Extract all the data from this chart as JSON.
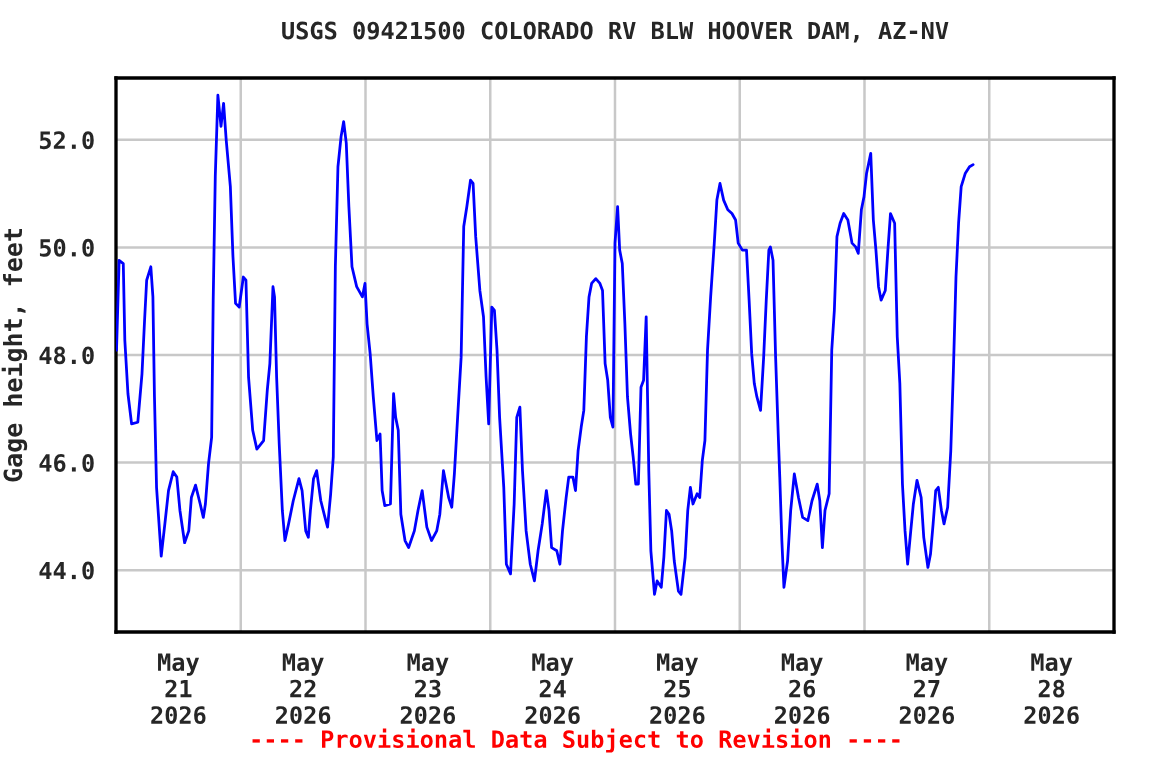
{
  "chart_data": {
    "type": "line",
    "title": "USGS 09421500 COLORADO RV BLW HOOVER DAM, AZ-NV",
    "ylabel": "Gage height, feet",
    "annotations": [
      "---- Provisional Data Subject to Revision ----"
    ],
    "series": [
      {
        "color": "#0000ff",
        "x": [
          "2026-05-21T00:06",
          "2026-05-21T00:36",
          "2026-05-21T01:24",
          "2026-05-21T01:42",
          "2026-05-21T02:18",
          "2026-05-21T03:00",
          "2026-05-21T04:12",
          "2026-05-21T05:00",
          "2026-05-21T05:30",
          "2026-05-21T05:54",
          "2026-05-21T06:42",
          "2026-05-21T07:06",
          "2026-05-21T07:24",
          "2026-05-21T07:48",
          "2026-05-21T08:42",
          "2026-05-21T09:24",
          "2026-05-21T10:06",
          "2026-05-21T11:00",
          "2026-05-21T11:42",
          "2026-05-21T12:18",
          "2026-05-21T13:12",
          "2026-05-21T14:00",
          "2026-05-21T14:30",
          "2026-05-21T15:18",
          "2026-05-21T16:12",
          "2026-05-21T16:48",
          "2026-05-21T17:12",
          "2026-05-21T17:48",
          "2026-05-21T18:24",
          "2026-05-21T18:42",
          "2026-05-21T19:06",
          "2026-05-21T19:36",
          "2026-05-21T20:12",
          "2026-05-21T20:42",
          "2026-05-21T21:12",
          "2026-05-21T22:00",
          "2026-05-21T22:30",
          "2026-05-21T23:00",
          "2026-05-21T23:42",
          "2026-05-22T00:30",
          "2026-05-22T01:00",
          "2026-05-22T01:30",
          "2026-05-22T02:18",
          "2026-05-22T03:06",
          "2026-05-22T04:24",
          "2026-05-22T05:06",
          "2026-05-22T05:36",
          "2026-05-22T06:12",
          "2026-05-22T06:30",
          "2026-05-22T06:54",
          "2026-05-22T07:24",
          "2026-05-22T08:00",
          "2026-05-22T08:30",
          "2026-05-22T09:12",
          "2026-05-22T10:06",
          "2026-05-22T11:12",
          "2026-05-22T11:48",
          "2026-05-22T12:30",
          "2026-05-22T13:00",
          "2026-05-22T13:24",
          "2026-05-22T14:00",
          "2026-05-22T14:36",
          "2026-05-22T15:24",
          "2026-05-22T16:12",
          "2026-05-22T16:42",
          "2026-05-22T17:18",
          "2026-05-22T17:48",
          "2026-05-22T18:12",
          "2026-05-22T18:42",
          "2026-05-22T19:18",
          "2026-05-22T19:48",
          "2026-05-22T20:18",
          "2026-05-22T20:48",
          "2026-05-22T21:24",
          "2026-05-22T22:18",
          "2026-05-22T23:24",
          "2026-05-22T23:54",
          "2026-05-23T00:18",
          "2026-05-23T00:54",
          "2026-05-23T01:30",
          "2026-05-23T02:12",
          "2026-05-23T02:48",
          "2026-05-23T03:12",
          "2026-05-23T03:42",
          "2026-05-23T04:48",
          "2026-05-23T05:24",
          "2026-05-23T05:48",
          "2026-05-23T06:18",
          "2026-05-23T06:48",
          "2026-05-23T07:36",
          "2026-05-23T08:18",
          "2026-05-23T09:24",
          "2026-05-23T10:06",
          "2026-05-23T10:54",
          "2026-05-23T11:48",
          "2026-05-23T12:42",
          "2026-05-23T13:42",
          "2026-05-23T14:18",
          "2026-05-23T15:00",
          "2026-05-23T16:00",
          "2026-05-23T16:36",
          "2026-05-23T17:06",
          "2026-05-23T17:48",
          "2026-05-23T18:24",
          "2026-05-23T18:54",
          "2026-05-23T19:30",
          "2026-05-23T20:12",
          "2026-05-23T20:42",
          "2026-05-23T21:12",
          "2026-05-23T22:00",
          "2026-05-23T22:42",
          "2026-05-23T23:12",
          "2026-05-23T23:42",
          "2026-05-24T00:18",
          "2026-05-24T00:48",
          "2026-05-24T01:18",
          "2026-05-24T01:48",
          "2026-05-24T02:36",
          "2026-05-24T03:06",
          "2026-05-24T03:54",
          "2026-05-24T04:36",
          "2026-05-24T05:06",
          "2026-05-24T05:42",
          "2026-05-24T06:12",
          "2026-05-24T06:54",
          "2026-05-24T07:42",
          "2026-05-24T08:30",
          "2026-05-24T09:12",
          "2026-05-24T10:00",
          "2026-05-24T10:48",
          "2026-05-24T11:18",
          "2026-05-24T11:48",
          "2026-05-24T12:48",
          "2026-05-24T13:24",
          "2026-05-24T13:54",
          "2026-05-24T14:36",
          "2026-05-24T15:06",
          "2026-05-24T15:54",
          "2026-05-24T16:24",
          "2026-05-24T16:54",
          "2026-05-24T17:30",
          "2026-05-24T18:00",
          "2026-05-24T18:30",
          "2026-05-24T19:00",
          "2026-05-24T19:30",
          "2026-05-24T20:18",
          "2026-05-24T21:06",
          "2026-05-24T21:36",
          "2026-05-24T22:06",
          "2026-05-24T22:36",
          "2026-05-24T23:06",
          "2026-05-24T23:36",
          "2026-05-25T00:00",
          "2026-05-25T00:30",
          "2026-05-25T00:54",
          "2026-05-25T01:24",
          "2026-05-25T01:54",
          "2026-05-25T02:24",
          "2026-05-25T03:00",
          "2026-05-25T03:30",
          "2026-05-25T04:00",
          "2026-05-25T04:30",
          "2026-05-25T05:00",
          "2026-05-25T05:30",
          "2026-05-25T06:00",
          "2026-05-25T06:30",
          "2026-05-25T06:54",
          "2026-05-25T07:36",
          "2026-05-25T08:06",
          "2026-05-25T08:54",
          "2026-05-25T09:24",
          "2026-05-25T09:54",
          "2026-05-25T10:24",
          "2026-05-25T10:54",
          "2026-05-25T11:24",
          "2026-05-25T12:12",
          "2026-05-25T12:42",
          "2026-05-25T13:30",
          "2026-05-25T14:00",
          "2026-05-25T14:30",
          "2026-05-25T15:00",
          "2026-05-25T15:48",
          "2026-05-25T16:18",
          "2026-05-25T16:48",
          "2026-05-25T17:18",
          "2026-05-25T17:48",
          "2026-05-25T18:24",
          "2026-05-25T19:06",
          "2026-05-25T19:36",
          "2026-05-25T20:12",
          "2026-05-25T20:54",
          "2026-05-25T21:42",
          "2026-05-25T22:30",
          "2026-05-25T23:12",
          "2026-05-25T23:42",
          "2026-05-26T00:30",
          "2026-05-26T01:18",
          "2026-05-26T01:48",
          "2026-05-26T02:18",
          "2026-05-26T02:48",
          "2026-05-26T03:18",
          "2026-05-26T04:00",
          "2026-05-26T04:36",
          "2026-05-26T05:06",
          "2026-05-26T05:36",
          "2026-05-26T05:54",
          "2026-05-26T06:24",
          "2026-05-26T06:54",
          "2026-05-26T07:24",
          "2026-05-26T07:42",
          "2026-05-26T08:06",
          "2026-05-26T08:30",
          "2026-05-26T09:12",
          "2026-05-26T09:48",
          "2026-05-26T10:30",
          "2026-05-26T11:18",
          "2026-05-26T12:06",
          "2026-05-26T13:06",
          "2026-05-26T13:54",
          "2026-05-26T14:54",
          "2026-05-26T15:24",
          "2026-05-26T15:54",
          "2026-05-26T16:24",
          "2026-05-26T17:12",
          "2026-05-26T17:42",
          "2026-05-26T18:12",
          "2026-05-26T18:42",
          "2026-05-26T19:18",
          "2026-05-26T20:00",
          "2026-05-26T20:48",
          "2026-05-26T21:36",
          "2026-05-26T22:18",
          "2026-05-26T22:48",
          "2026-05-26T23:24",
          "2026-05-26T23:54",
          "2026-05-27T00:24",
          "2026-05-27T01:12",
          "2026-05-27T01:42",
          "2026-05-27T02:12",
          "2026-05-27T02:42",
          "2026-05-27T03:12",
          "2026-05-27T04:00",
          "2026-05-27T04:30",
          "2026-05-27T05:00",
          "2026-05-27T05:48",
          "2026-05-27T06:18",
          "2026-05-27T06:48",
          "2026-05-27T07:18",
          "2026-05-27T07:48",
          "2026-05-27T08:18",
          "2026-05-27T08:54",
          "2026-05-27T09:24",
          "2026-05-27T10:06",
          "2026-05-27T10:54",
          "2026-05-27T11:24",
          "2026-05-27T12:12",
          "2026-05-27T12:42",
          "2026-05-27T13:12",
          "2026-05-27T13:42",
          "2026-05-27T14:12",
          "2026-05-27T14:48",
          "2026-05-27T15:18",
          "2026-05-27T16:00",
          "2026-05-27T16:36",
          "2026-05-27T17:06",
          "2026-05-27T17:36",
          "2026-05-27T18:06",
          "2026-05-27T18:36",
          "2026-05-27T19:24",
          "2026-05-27T20:12",
          "2026-05-27T20:54"
        ],
        "values": [
          48.09,
          49.76,
          49.7,
          48.27,
          47.28,
          46.72,
          46.75,
          47.65,
          48.65,
          49.39,
          49.64,
          49.08,
          47.22,
          45.54,
          44.26,
          44.86,
          45.48,
          45.83,
          45.73,
          45.11,
          44.51,
          44.73,
          45.35,
          45.58,
          45.23,
          44.98,
          45.23,
          45.98,
          46.47,
          49.02,
          51.32,
          52.83,
          52.25,
          52.68,
          52.0,
          51.13,
          49.83,
          48.96,
          48.89,
          49.45,
          49.39,
          47.59,
          46.6,
          46.25,
          46.41,
          47.34,
          47.84,
          49.27,
          49.08,
          47.59,
          46.35,
          45.11,
          44.55,
          44.86,
          45.29,
          45.7,
          45.48,
          44.73,
          44.61,
          45.11,
          45.7,
          45.85,
          45.29,
          44.98,
          44.8,
          45.42,
          46.1,
          49.64,
          51.5,
          52.06,
          52.34,
          51.94,
          50.76,
          49.64,
          49.27,
          49.08,
          49.33,
          48.58,
          48.02,
          47.22,
          46.41,
          46.53,
          45.48,
          45.2,
          45.23,
          47.28,
          46.84,
          46.6,
          45.04,
          44.55,
          44.42,
          44.73,
          45.11,
          45.48,
          44.8,
          44.55,
          44.73,
          45.04,
          45.85,
          45.35,
          45.17,
          45.79,
          46.97,
          47.96,
          50.39,
          50.76,
          51.25,
          51.19,
          50.2,
          49.2,
          48.71,
          47.59,
          46.72,
          48.89,
          48.83,
          48.09,
          46.84,
          45.54,
          44.11,
          43.93,
          45.23,
          46.84,
          47.03,
          45.85,
          44.73,
          44.11,
          43.8,
          44.36,
          44.86,
          45.48,
          45.11,
          44.42,
          44.36,
          44.11,
          44.73,
          45.35,
          45.73,
          45.73,
          45.48,
          46.22,
          46.66,
          46.97,
          48.34,
          49.08,
          49.33,
          49.42,
          49.33,
          49.2,
          47.84,
          47.53,
          46.84,
          46.66,
          50.08,
          50.76,
          49.95,
          49.7,
          48.58,
          47.22,
          46.53,
          46.1,
          45.6,
          45.6,
          47.4,
          47.53,
          48.71,
          45.85,
          44.36,
          43.55,
          43.8,
          43.68,
          44.24,
          45.11,
          45.04,
          44.73,
          44.17,
          43.61,
          43.55,
          44.24,
          45.11,
          45.54,
          45.23,
          45.42,
          45.35,
          46.04,
          46.41,
          48.09,
          49.08,
          50.08,
          50.88,
          51.19,
          50.88,
          50.7,
          50.63,
          50.51,
          50.08,
          49.95,
          49.95,
          49.02,
          48.02,
          47.47,
          47.22,
          46.97,
          47.96,
          49.02,
          49.95,
          50.01,
          49.76,
          47.96,
          46.53,
          45.73,
          44.55,
          43.68,
          44.17,
          45.11,
          45.79,
          45.35,
          44.98,
          44.92,
          45.29,
          45.6,
          45.29,
          44.42,
          45.11,
          45.42,
          48.09,
          48.83,
          50.2,
          50.45,
          50.63,
          50.51,
          50.08,
          50.01,
          49.89,
          50.7,
          50.94,
          51.38,
          51.75,
          50.51,
          49.95,
          49.27,
          49.02,
          49.2,
          49.95,
          50.63,
          50.45,
          48.34,
          47.47,
          45.6,
          44.73,
          44.11,
          44.73,
          45.23,
          45.67,
          45.35,
          44.61,
          44.05,
          44.3,
          44.86,
          45.48,
          45.54,
          45.11,
          44.86,
          45.17,
          46.22,
          47.71,
          49.45,
          50.45,
          51.13,
          51.38,
          51.5,
          51.54
        ]
      }
    ],
    "xlim": [
      "2026-05-21T00:00",
      "2026-05-29T00:00"
    ],
    "xticks": [
      {
        "value": "2026-05-21T12:00",
        "label": "May\n21\n2026"
      },
      {
        "value": "2026-05-22T00:00",
        "label": null
      },
      {
        "value": "2026-05-22T12:00",
        "label": "May\n22\n2026"
      },
      {
        "value": "2026-05-23T00:00",
        "label": null
      },
      {
        "value": "2026-05-23T12:00",
        "label": "May\n23\n2026"
      },
      {
        "value": "2026-05-24T00:00",
        "label": null
      },
      {
        "value": "2026-05-24T12:00",
        "label": "May\n24\n2026"
      },
      {
        "value": "2026-05-25T00:00",
        "label": null
      },
      {
        "value": "2026-05-25T12:00",
        "label": "May\n25\n2026"
      },
      {
        "value": "2026-05-26T00:00",
        "label": null
      },
      {
        "value": "2026-05-26T12:00",
        "label": "May\n26\n2026"
      },
      {
        "value": "2026-05-27T00:00",
        "label": null
      },
      {
        "value": "2026-05-27T12:00",
        "label": "May\n27\n2026"
      },
      {
        "value": "2026-05-28T00:00",
        "label": null
      },
      {
        "value": "2026-05-28T12:00",
        "label": "May\n28\n2026"
      }
    ],
    "ylim": [
      42.85,
      53.15
    ],
    "yticks": [
      {
        "value": 44,
        "label": "44.0"
      },
      {
        "value": 46,
        "label": "46.0"
      },
      {
        "value": 48,
        "label": "48.0"
      },
      {
        "value": 50,
        "label": "50.0"
      },
      {
        "value": 52,
        "label": "52.0"
      }
    ],
    "grid": true,
    "legend": false,
    "marker": "none",
    "line_style": "solid"
  }
}
